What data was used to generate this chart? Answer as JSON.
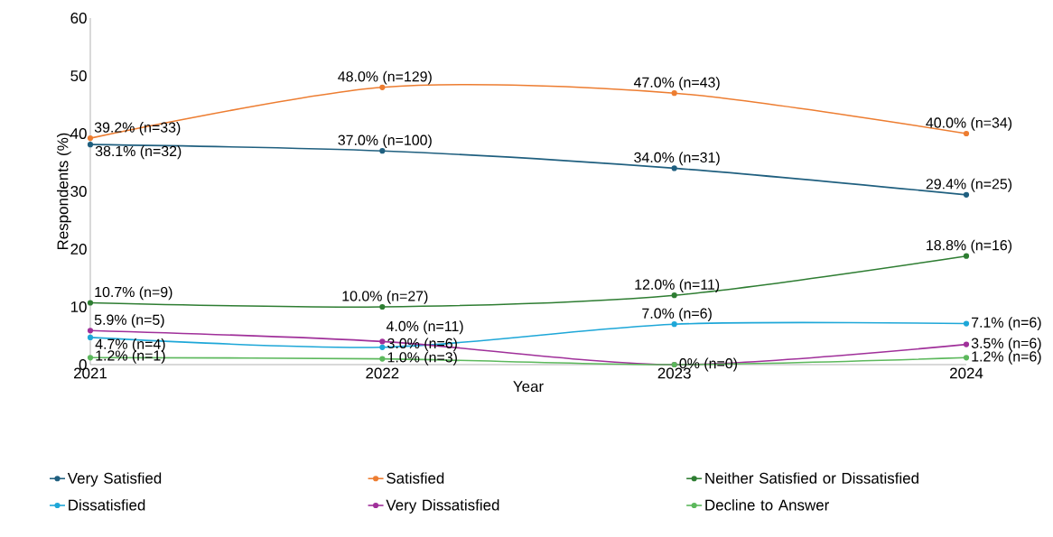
{
  "chart_data": {
    "type": "line",
    "xlabel": "Year",
    "ylabel": "Respondents (%)",
    "categories": [
      "2021",
      "2022",
      "2023",
      "2024"
    ],
    "ylim": [
      0,
      60
    ],
    "yticks": [
      0,
      10,
      20,
      30,
      40,
      50,
      60
    ],
    "legend": "bottom",
    "marker": "circle",
    "series": [
      {
        "name": "Very Satisfied",
        "color": "#1f5f7f",
        "values": [
          38.1,
          37.0,
          34.0,
          29.4
        ],
        "value_labels": [
          "38.1% (n=32)",
          "37.0% (n=100)",
          "34.0% (n=31)",
          "29.4% (n=25)"
        ]
      },
      {
        "name": "Satisfied",
        "color": "#ed7d31",
        "values": [
          39.2,
          48.0,
          47.0,
          40.0
        ],
        "value_labels": [
          "39.2% (n=33)",
          "48.0% (n=129)",
          "47.0% (n=43)",
          "40.0% (n=34)"
        ]
      },
      {
        "name": "Neither Satisfied or Dissatisfied",
        "color": "#2e7d32",
        "values": [
          10.7,
          10.0,
          12.0,
          18.8
        ],
        "value_labels": [
          "10.7% (n=9)",
          "10.0% (n=27)",
          "12.0% (n=11)",
          "18.8% (n=16)"
        ]
      },
      {
        "name": "Dissatisfied",
        "color": "#1ea7d8",
        "values": [
          4.7,
          3.0,
          7.0,
          7.1
        ],
        "value_labels": [
          "4.7% (n=4)",
          "3.0% (n=6)",
          "7.0% (n=6)",
          "7.1% (n=6)"
        ]
      },
      {
        "name": "Very Dissatisfied",
        "color": "#a0309a",
        "values": [
          5.9,
          4.0,
          0,
          3.5
        ],
        "value_labels": [
          "5.9% (n=5)",
          "4.0% (n=11)",
          null,
          "3.5% (n=6)"
        ]
      },
      {
        "name": "Decline to Answer",
        "color": "#5cb85c",
        "values": [
          1.2,
          1.0,
          0,
          1.2
        ],
        "value_labels": [
          "1.2% (n=1)",
          "1.0% (n=3)",
          "0% (n=0)",
          "1.2% (n=6)"
        ]
      }
    ]
  }
}
